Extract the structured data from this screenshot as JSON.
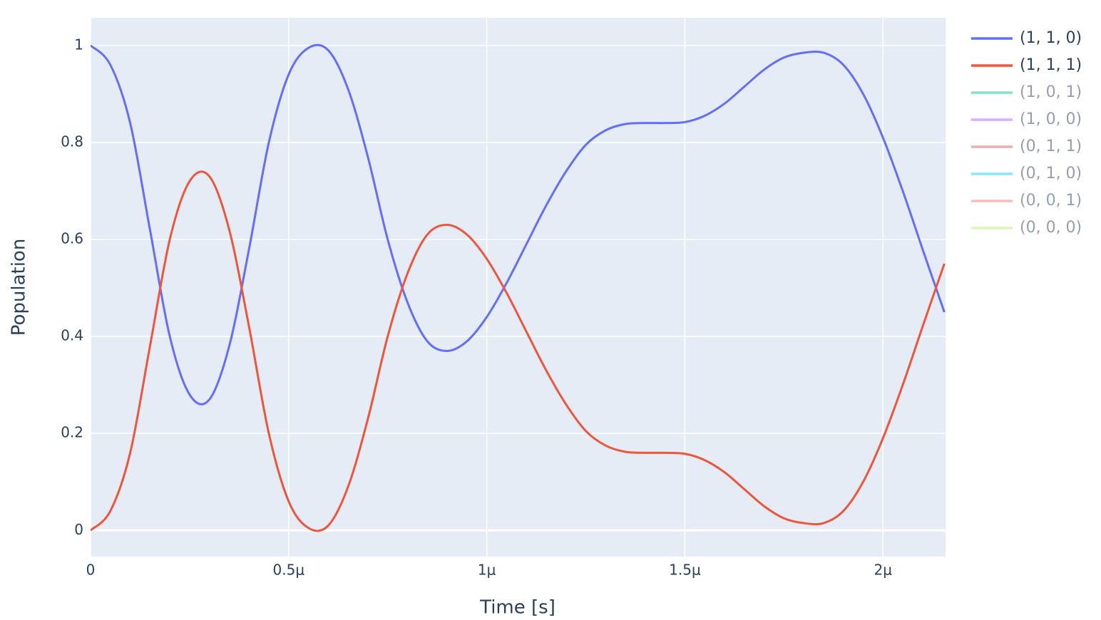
{
  "chart_data": {
    "type": "line",
    "x_label": "Time [s]",
    "y_label": "Population",
    "x": [
      0,
      5e-08,
      1e-07,
      1.5e-07,
      2e-07,
      2.5e-07,
      3e-07,
      3.5e-07,
      4e-07,
      4.5e-07,
      5e-07,
      5.5e-07,
      6e-07,
      6.5e-07,
      7e-07,
      7.5e-07,
      8e-07,
      8.5e-07,
      9e-07,
      9.5e-07,
      1e-06,
      1.05e-06,
      1.1e-06,
      1.15e-06,
      1.2e-06,
      1.25e-06,
      1.3e-06,
      1.35e-06,
      1.4e-06,
      1.45e-06,
      1.5e-06,
      1.55e-06,
      1.6e-06,
      1.65e-06,
      1.7e-06,
      1.75e-06,
      1.8e-06,
      1.85e-06,
      1.9e-06,
      1.95e-06,
      2e-06,
      2.05e-06,
      2.1e-06,
      2.155e-06
    ],
    "series": [
      {
        "name": "(1, 1, 0)",
        "color": "#636efa",
        "values": [
          1.0,
          0.96,
          0.84,
          0.62,
          0.4,
          0.28,
          0.27,
          0.38,
          0.58,
          0.8,
          0.94,
          0.995,
          0.99,
          0.91,
          0.77,
          0.6,
          0.47,
          0.39,
          0.37,
          0.39,
          0.44,
          0.51,
          0.59,
          0.67,
          0.74,
          0.795,
          0.825,
          0.838,
          0.84,
          0.84,
          0.842,
          0.855,
          0.88,
          0.915,
          0.95,
          0.975,
          0.985,
          0.985,
          0.96,
          0.9,
          0.81,
          0.7,
          0.58,
          0.45
        ]
      },
      {
        "name": "(1, 1, 1)",
        "color": "#EF553B",
        "values": [
          0.0,
          0.04,
          0.16,
          0.38,
          0.6,
          0.72,
          0.73,
          0.62,
          0.42,
          0.2,
          0.06,
          0.005,
          0.01,
          0.09,
          0.23,
          0.4,
          0.53,
          0.61,
          0.63,
          0.61,
          0.56,
          0.49,
          0.41,
          0.33,
          0.26,
          0.205,
          0.175,
          0.162,
          0.16,
          0.16,
          0.158,
          0.145,
          0.12,
          0.085,
          0.05,
          0.025,
          0.015,
          0.015,
          0.04,
          0.1,
          0.19,
          0.3,
          0.42,
          0.55
        ]
      },
      {
        "name": "(1, 0, 1)",
        "color": "#00cc96",
        "visible": "legendonly"
      },
      {
        "name": "(1, 0, 0)",
        "color": "#ab63fa",
        "visible": "legendonly"
      },
      {
        "name": "(0, 1, 1)",
        "color": "#d9645a",
        "visible": "legendonly"
      },
      {
        "name": "(0, 1, 0)",
        "color": "#19d3f3",
        "visible": "legendonly"
      },
      {
        "name": "(0, 0, 1)",
        "color": "#f07f7a",
        "visible": "legendonly"
      },
      {
        "name": "(0, 0, 0)",
        "color": "#B6E880",
        "visible": "legendonly"
      }
    ],
    "xlim": [
      0,
      2.158e-06
    ],
    "xticks": [
      0,
      {
        "value": 5e-07,
        "label": "0.5μ"
      },
      {
        "value": 1e-06,
        "label": "1μ"
      },
      {
        "value": 1.5e-06,
        "label": "1.5μ"
      },
      {
        "value": 2e-06,
        "label": "2μ"
      }
    ],
    "ylim": [
      -0.054,
      1.057
    ],
    "yticks": [
      0,
      0.2,
      0.4,
      0.6,
      0.8,
      1
    ],
    "grid": true,
    "legend": "right",
    "background": "#e5ecf6"
  }
}
